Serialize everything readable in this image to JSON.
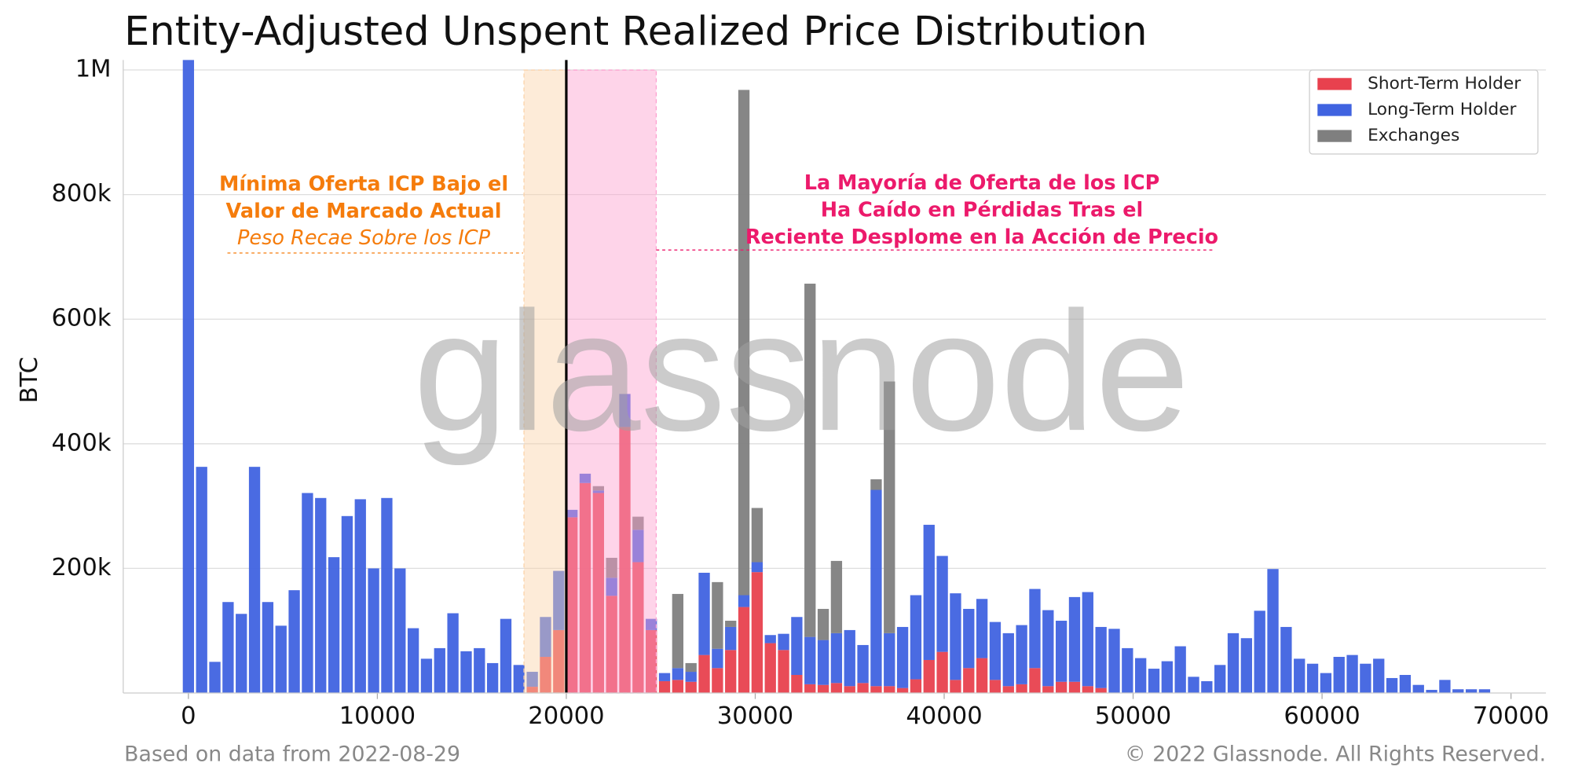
{
  "chart_data": {
    "type": "stacked_bar",
    "title": "Entity-Adjusted Unspent Realized Price Distribution",
    "y_label": "BTC",
    "watermark": "glassnode",
    "footer_left": "Based on data from 2022-08-29",
    "footer_right": "© 2022 Glassnode. All Rights Reserved.",
    "legend": "upper right",
    "grid": true,
    "xlim": [
      -3450,
      71850
    ],
    "ylim": [
      0,
      1016000
    ],
    "xticks": [
      0,
      10000,
      20000,
      30000,
      40000,
      50000,
      60000,
      70000
    ],
    "yticks": [
      {
        "value": 200000,
        "label": "200k"
      },
      {
        "value": 400000,
        "label": "400k"
      },
      {
        "value": 600000,
        "label": "600k"
      },
      {
        "value": 800000,
        "label": "800k"
      },
      {
        "value": 1000000,
        "label": "1M"
      }
    ],
    "x": [
      0,
      700,
      1400,
      2100,
      2800,
      3500,
      4200,
      4900,
      5600,
      6300,
      7000,
      7700,
      8400,
      9100,
      9800,
      10500,
      11200,
      11900,
      12600,
      13300,
      14000,
      14700,
      15400,
      16100,
      16800,
      17500,
      18200,
      18900,
      19600,
      20300,
      21000,
      21700,
      22400,
      23100,
      23800,
      24500,
      25200,
      25900,
      26600,
      27300,
      28000,
      28700,
      29400,
      30100,
      30800,
      31500,
      32200,
      32900,
      33600,
      34300,
      35000,
      35700,
      36400,
      37100,
      37800,
      38500,
      39200,
      39900,
      40600,
      41300,
      42000,
      42700,
      43400,
      44100,
      44800,
      45500,
      46200,
      46900,
      47600,
      48300,
      49000,
      49700,
      50400,
      51100,
      51800,
      52500,
      53200,
      53900,
      54600,
      55300,
      56000,
      56700,
      57400,
      58100,
      58800,
      59500,
      60200,
      60900,
      61600,
      62300,
      63000,
      63700,
      64400,
      65100,
      65800,
      66500,
      67200,
      67900,
      68600
    ],
    "series": [
      {
        "name": "Short-Term Holder",
        "color": "#e8414e",
        "values": [
          0,
          0,
          0,
          0,
          0,
          0,
          0,
          0,
          0,
          0,
          0,
          0,
          0,
          0,
          0,
          0,
          0,
          0,
          0,
          0,
          0,
          0,
          0,
          0,
          0,
          0,
          10000,
          58000,
          101000,
          282000,
          337000,
          321000,
          156000,
          427000,
          210000,
          101000,
          19000,
          21000,
          18000,
          61000,
          40000,
          69000,
          138000,
          194000,
          80000,
          69000,
          29000,
          14000,
          13000,
          16000,
          11000,
          16000,
          11000,
          11000,
          8000,
          22000,
          53000,
          66000,
          21000,
          40000,
          56000,
          21000,
          11000,
          14000,
          40000,
          11000,
          18000,
          18000,
          11000,
          8000,
          0,
          0,
          0,
          0,
          0,
          0,
          0,
          0,
          0,
          0,
          0,
          0,
          0,
          0,
          0,
          0,
          0,
          0,
          0,
          0,
          0,
          0,
          0,
          0,
          0,
          0,
          0,
          0,
          0
        ]
      },
      {
        "name": "Long-Term Holder",
        "color": "#4063e0",
        "values": [
          1016000,
          363000,
          50000,
          146000,
          127000,
          363000,
          146000,
          108000,
          165000,
          321000,
          313000,
          218000,
          284000,
          311000,
          200000,
          313000,
          200000,
          104000,
          55000,
          72000,
          128000,
          67000,
          72000,
          48000,
          119000,
          45000,
          24000,
          64000,
          95000,
          12000,
          15000,
          4000,
          29000,
          53000,
          52000,
          18000,
          13000,
          19000,
          16000,
          132000,
          31000,
          37000,
          19000,
          16000,
          13000,
          26000,
          93000,
          76000,
          72000,
          80000,
          90000,
          61000,
          315000,
          85000,
          98000,
          135000,
          217000,
          154000,
          139000,
          95000,
          95000,
          93000,
          85000,
          95000,
          127000,
          122000,
          98000,
          136000,
          151000,
          98000,
          103000,
          72000,
          56000,
          39000,
          51000,
          75000,
          26000,
          19000,
          45000,
          96000,
          88000,
          132000,
          199000,
          106000,
          55000,
          47000,
          32000,
          58000,
          61000,
          47000,
          55000,
          24000,
          29000,
          13000,
          5000,
          21000,
          6000,
          6000,
          6000
        ]
      },
      {
        "name": "Exchanges",
        "color": "#7f7f7f",
        "values": [
          0,
          0,
          0,
          0,
          0,
          0,
          0,
          0,
          0,
          0,
          0,
          0,
          0,
          0,
          0,
          0,
          0,
          0,
          0,
          0,
          0,
          0,
          0,
          0,
          0,
          0,
          0,
          0,
          0,
          0,
          0,
          7000,
          32000,
          0,
          21000,
          0,
          0,
          119000,
          14000,
          0,
          107000,
          10000,
          811000,
          87000,
          0,
          0,
          0,
          567000,
          50000,
          116000,
          0,
          0,
          17000,
          404000,
          0,
          0,
          0,
          0,
          0,
          0,
          0,
          0,
          0,
          0,
          0,
          0,
          0,
          0,
          0,
          0,
          0,
          0,
          0,
          0,
          0,
          0,
          0,
          0,
          0,
          0,
          0,
          0,
          0,
          0,
          0,
          0,
          0,
          0,
          0,
          0,
          0,
          0,
          0,
          0,
          0,
          0,
          0,
          0,
          0
        ]
      }
    ],
    "shaded_regions": [
      {
        "x0": 17760,
        "x1": 20000,
        "color": "#fbd2a8"
      },
      {
        "x0": 20000,
        "x1": 24760,
        "color": "#fc9fcf"
      }
    ],
    "price_line": 20000,
    "left_note": {
      "lines": [
        "Mínima Oferta ICP Bajo el",
        "Valor de Marcado Actual"
      ],
      "italic_line": "Peso Recae Sobre los ICP",
      "color": "#f57c0c"
    },
    "right_note": {
      "lines": [
        "La Mayoría de Oferta de los ICP",
        "Ha Caído en Pérdidas Tras el",
        "Reciente Desplome en la Acción de Precio"
      ],
      "color": "#ec1a6b"
    }
  }
}
